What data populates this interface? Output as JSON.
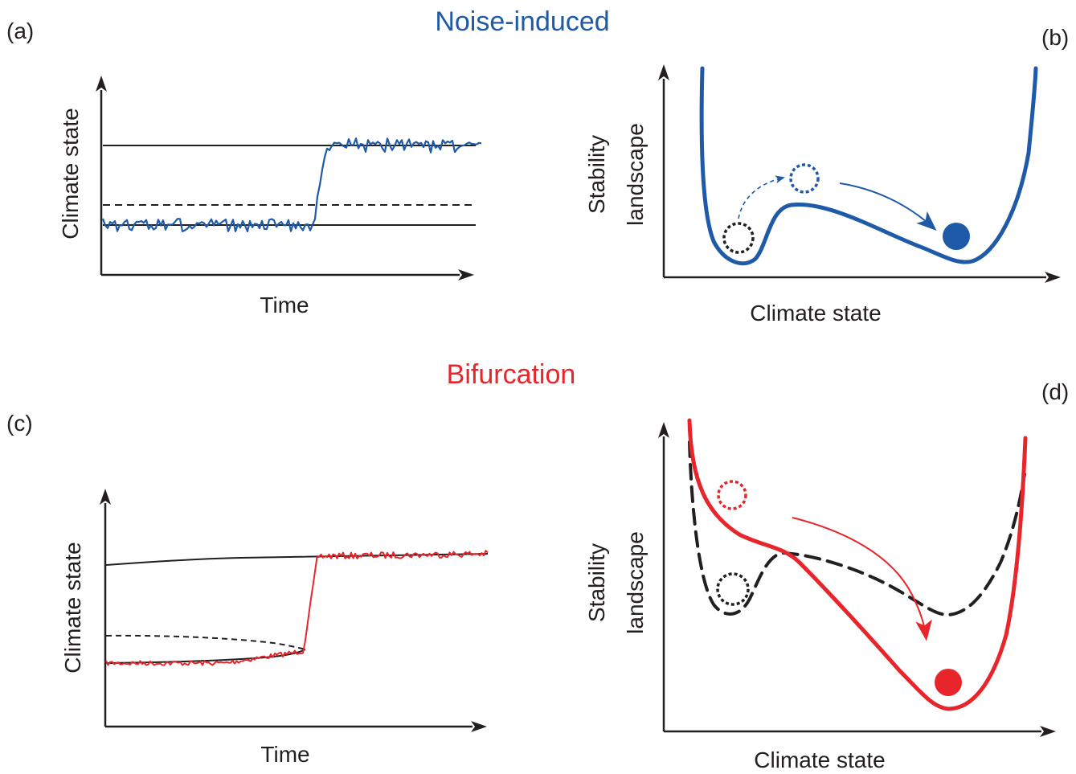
{
  "colors": {
    "noise": "#1f5aa8",
    "bifurcation": "#e8252b",
    "ink": "#231f20"
  },
  "titles": {
    "noise_induced": "Noise-induced",
    "bifurcation": "Bifurcation"
  },
  "panels": {
    "a": {
      "tag": "(a)",
      "ylabel": "Climate state",
      "xlabel": "Time"
    },
    "b": {
      "tag": "(b)",
      "ylabel_line1": "Stability",
      "ylabel_line2": "landscape",
      "xlabel": "Climate state"
    },
    "c": {
      "tag": "(c)",
      "ylabel": "Climate state",
      "xlabel": "Time"
    },
    "d": {
      "tag": "(d)",
      "ylabel_line1": "Stability",
      "ylabel_line2": "landscape",
      "xlabel": "Climate state"
    }
  }
}
